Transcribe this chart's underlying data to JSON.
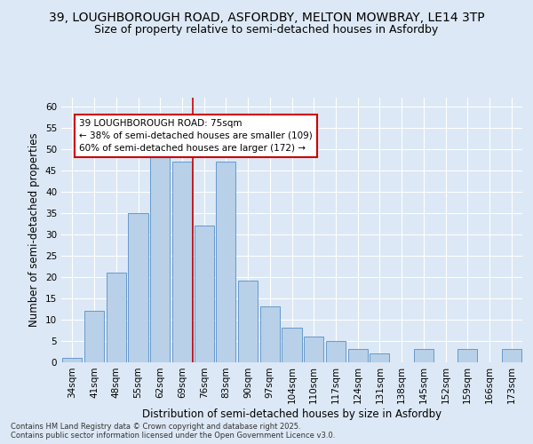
{
  "title_line1": "39, LOUGHBOROUGH ROAD, ASFORDBY, MELTON MOWBRAY, LE14 3TP",
  "title_line2": "Size of property relative to semi-detached houses in Asfordby",
  "xlabel": "Distribution of semi-detached houses by size in Asfordby",
  "ylabel": "Number of semi-detached properties",
  "categories": [
    "34sqm",
    "41sqm",
    "48sqm",
    "55sqm",
    "62sqm",
    "69sqm",
    "76sqm",
    "83sqm",
    "90sqm",
    "97sqm",
    "104sqm",
    "110sqm",
    "117sqm",
    "124sqm",
    "131sqm",
    "138sqm",
    "145sqm",
    "152sqm",
    "159sqm",
    "166sqm",
    "173sqm"
  ],
  "values": [
    1,
    12,
    21,
    35,
    50,
    47,
    32,
    47,
    19,
    13,
    8,
    6,
    5,
    3,
    2,
    0,
    3,
    0,
    3,
    0,
    3
  ],
  "bar_color": "#b8d0e8",
  "bar_edge_color": "#6699cc",
  "reference_line_color": "#cc0000",
  "annotation_text": "39 LOUGHBOROUGH ROAD: 75sqm\n← 38% of semi-detached houses are smaller (109)\n60% of semi-detached houses are larger (172) →",
  "annotation_box_color": "#cc0000",
  "ylim": [
    0,
    62
  ],
  "yticks": [
    0,
    5,
    10,
    15,
    20,
    25,
    30,
    35,
    40,
    45,
    50,
    55,
    60
  ],
  "background_color": "#dce8f5",
  "plot_bg_color": "#dce8f5",
  "grid_color": "#ffffff",
  "footer_text": "Contains HM Land Registry data © Crown copyright and database right 2025.\nContains public sector information licensed under the Open Government Licence v3.0.",
  "title_fontsize": 10,
  "subtitle_fontsize": 9,
  "axis_label_fontsize": 8.5,
  "tick_fontsize": 7.5,
  "annotation_fontsize": 7.5
}
